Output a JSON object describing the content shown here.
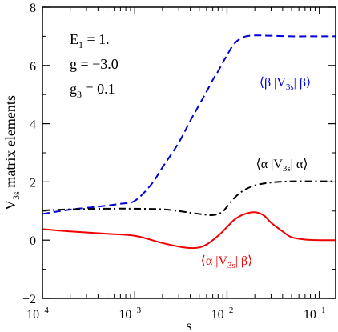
{
  "chart_data": {
    "type": "line",
    "xscale": "log",
    "xlim": [
      0.0001,
      0.15
    ],
    "ylim": [
      -2,
      8
    ],
    "xlabel": "s",
    "ylabel": {
      "main": "V",
      "sub": "3s",
      "rest": " matrix elements"
    },
    "xticks": [
      {
        "value": 0.0001,
        "base": "10",
        "exp": "−4"
      },
      {
        "value": 0.001,
        "base": "10",
        "exp": "−3"
      },
      {
        "value": 0.01,
        "base": "10",
        "exp": "−2"
      },
      {
        "value": 0.1,
        "base": "10",
        "exp": "−1"
      }
    ],
    "yticks": [
      {
        "value": -2,
        "label": "−2"
      },
      {
        "value": 0,
        "label": "0"
      },
      {
        "value": 2,
        "label": "2"
      },
      {
        "value": 4,
        "label": "4"
      },
      {
        "value": 6,
        "label": "6"
      },
      {
        "value": 8,
        "label": "8"
      }
    ],
    "parameters": [
      {
        "name": "E",
        "sub": "1",
        "value": " = 1."
      },
      {
        "name": "g",
        "sub": "",
        "value": " = −3.0"
      },
      {
        "name": "g",
        "sub": "3",
        "value": " = 0.1"
      }
    ],
    "series": [
      {
        "name": "⟨β |V3s| β⟩",
        "label_parts": {
          "pre": "⟨β |V",
          "sub": "3s",
          "post": "| β⟩"
        },
        "color": "#0000dd",
        "dash": "dashed",
        "x": [
          0.0001,
          0.0002,
          0.0004,
          0.0007,
          0.001,
          0.0015,
          0.002,
          0.003,
          0.004,
          0.005,
          0.006,
          0.007,
          0.008,
          0.009,
          0.01,
          0.012,
          0.015,
          0.02,
          0.03,
          0.05,
          0.08,
          0.1,
          0.15
        ],
        "y": [
          0.9,
          1.05,
          1.15,
          1.25,
          1.35,
          1.9,
          2.5,
          3.35,
          4.1,
          4.65,
          5.1,
          5.5,
          5.8,
          6.1,
          6.35,
          6.75,
          6.97,
          7.03,
          7.02,
          7.0,
          7.0,
          7.0,
          7.0
        ]
      },
      {
        "name": "⟨α |V3s| α⟩",
        "label_parts": {
          "pre": "⟨α |V",
          "sub": "3s",
          "post": "| α⟩"
        },
        "color": "#000000",
        "dash": "dashdot",
        "x": [
          0.0001,
          0.0002,
          0.0005,
          0.001,
          0.002,
          0.003,
          0.004,
          0.005,
          0.006,
          0.007,
          0.008,
          0.009,
          0.01,
          0.012,
          0.015,
          0.02,
          0.03,
          0.05,
          0.08,
          0.1,
          0.15
        ],
        "y": [
          1.02,
          1.06,
          1.08,
          1.08,
          1.06,
          1.0,
          0.94,
          0.9,
          0.87,
          0.86,
          0.9,
          0.98,
          1.15,
          1.45,
          1.7,
          1.88,
          1.98,
          2.02,
          2.02,
          2.02,
          2.02
        ]
      },
      {
        "name": "⟨α |V3s| β⟩",
        "label_parts": {
          "pre": "⟨α |V",
          "sub": "3s",
          "post": "| β⟩"
        },
        "color": "#ee0000",
        "dash": "solid",
        "x": [
          0.0001,
          0.0002,
          0.0005,
          0.001,
          0.002,
          0.003,
          0.004,
          0.005,
          0.006,
          0.007,
          0.008,
          0.009,
          0.01,
          0.012,
          0.015,
          0.02,
          0.025,
          0.03,
          0.04,
          0.05,
          0.07,
          0.1,
          0.15
        ],
        "y": [
          0.38,
          0.3,
          0.22,
          0.15,
          -0.1,
          -0.22,
          -0.27,
          -0.25,
          -0.15,
          0.0,
          0.15,
          0.3,
          0.45,
          0.7,
          0.88,
          0.96,
          0.85,
          0.6,
          0.3,
          0.1,
          0.02,
          0.0,
          0.0
        ]
      }
    ]
  }
}
